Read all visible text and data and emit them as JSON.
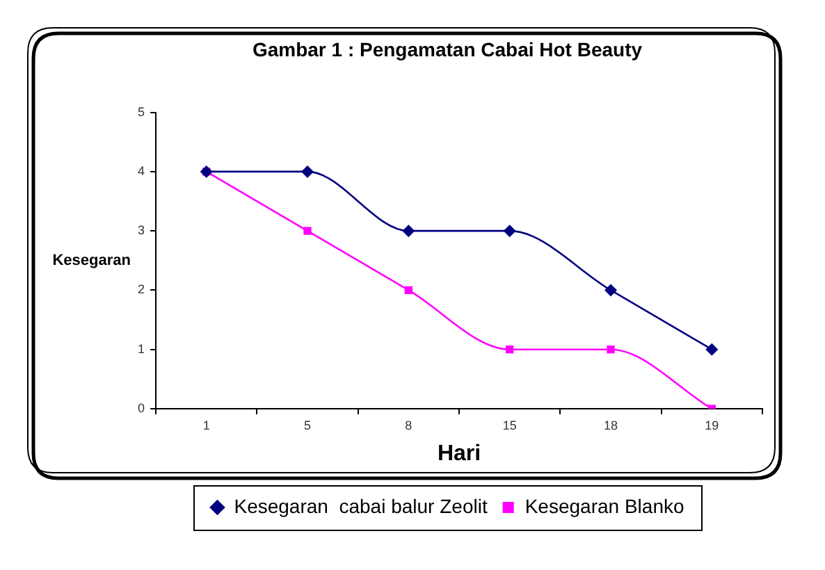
{
  "chart_data": {
    "type": "line",
    "title": "Gambar 1 : Pengamatan Cabai Hot Beauty",
    "xlabel": "Hari",
    "ylabel": "Kesegaran",
    "categories": [
      "1",
      "5",
      "8",
      "15",
      "18",
      "19"
    ],
    "series": [
      {
        "name": "Kesegaran  cabai balur Zeolit",
        "color": "#000080",
        "marker": "diamond",
        "values": [
          4,
          4,
          3,
          3,
          2,
          1
        ]
      },
      {
        "name": "Kesegaran Blanko",
        "color": "#ff00ff",
        "marker": "square",
        "values": [
          4,
          3,
          2,
          1,
          1,
          0
        ]
      }
    ],
    "ylim": [
      0,
      5
    ],
    "yticks": [
      0,
      1,
      2,
      3,
      4,
      5
    ],
    "legend": "bottom",
    "line_style": "solid"
  }
}
